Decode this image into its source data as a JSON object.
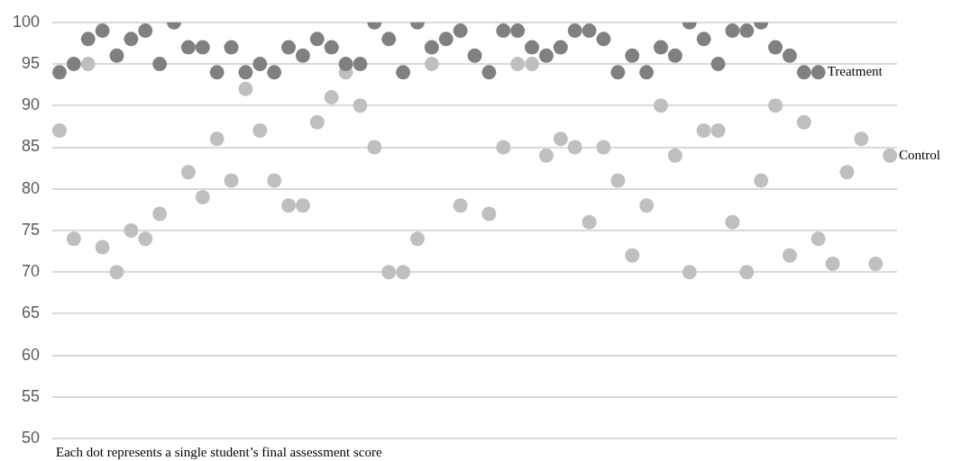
{
  "chart_data": {
    "type": "scatter",
    "categories": [
      null,
      null,
      null,
      null,
      null,
      null,
      null,
      null,
      null,
      null,
      null,
      null,
      null,
      null,
      null,
      null,
      null,
      null,
      null,
      null,
      null,
      null,
      null,
      null,
      null,
      null,
      null,
      null,
      null,
      null,
      null,
      null,
      null,
      null,
      null,
      null,
      null,
      null,
      null,
      null,
      null,
      null,
      null,
      null,
      null,
      null,
      null,
      null,
      null,
      null,
      null,
      null,
      null,
      null,
      null,
      null,
      null,
      null,
      null
    ],
    "series": [
      {
        "name": "Treatment",
        "color": "#808080",
        "values": [
          94,
          95,
          98,
          99,
          96,
          98,
          99,
          95,
          100,
          97,
          97,
          94,
          97,
          94,
          95,
          94,
          97,
          96,
          98,
          97,
          95,
          95,
          100,
          98,
          94,
          100,
          97,
          98,
          99,
          96,
          94,
          99,
          99,
          97,
          96,
          97,
          99,
          99,
          98,
          94,
          96,
          94,
          97,
          96,
          100,
          98,
          95,
          99,
          99,
          100,
          97,
          96,
          94,
          94,
          null,
          null,
          null,
          null,
          null
        ]
      },
      {
        "name": "Control",
        "color": "#bfbfbf",
        "values": [
          87,
          74,
          95,
          73,
          70,
          75,
          74,
          77,
          null,
          82,
          79,
          86,
          81,
          92,
          87,
          81,
          78,
          78,
          88,
          91,
          94,
          90,
          85,
          70,
          70,
          74,
          95,
          null,
          78,
          null,
          77,
          85,
          95,
          95,
          84,
          86,
          85,
          76,
          85,
          81,
          72,
          78,
          90,
          84,
          70,
          87,
          87,
          76,
          70,
          81,
          90,
          72,
          88,
          74,
          71,
          82,
          86,
          71,
          84
        ]
      }
    ],
    "ylim": [
      50,
      100
    ],
    "yticks": [
      50,
      55,
      60,
      65,
      70,
      75,
      80,
      85,
      90,
      95,
      100
    ],
    "grid": "y",
    "tick_labels": "y",
    "marker": "circle",
    "legend": false,
    "annotations": [
      "Each dot represents a single student’s final assessment score"
    ]
  }
}
